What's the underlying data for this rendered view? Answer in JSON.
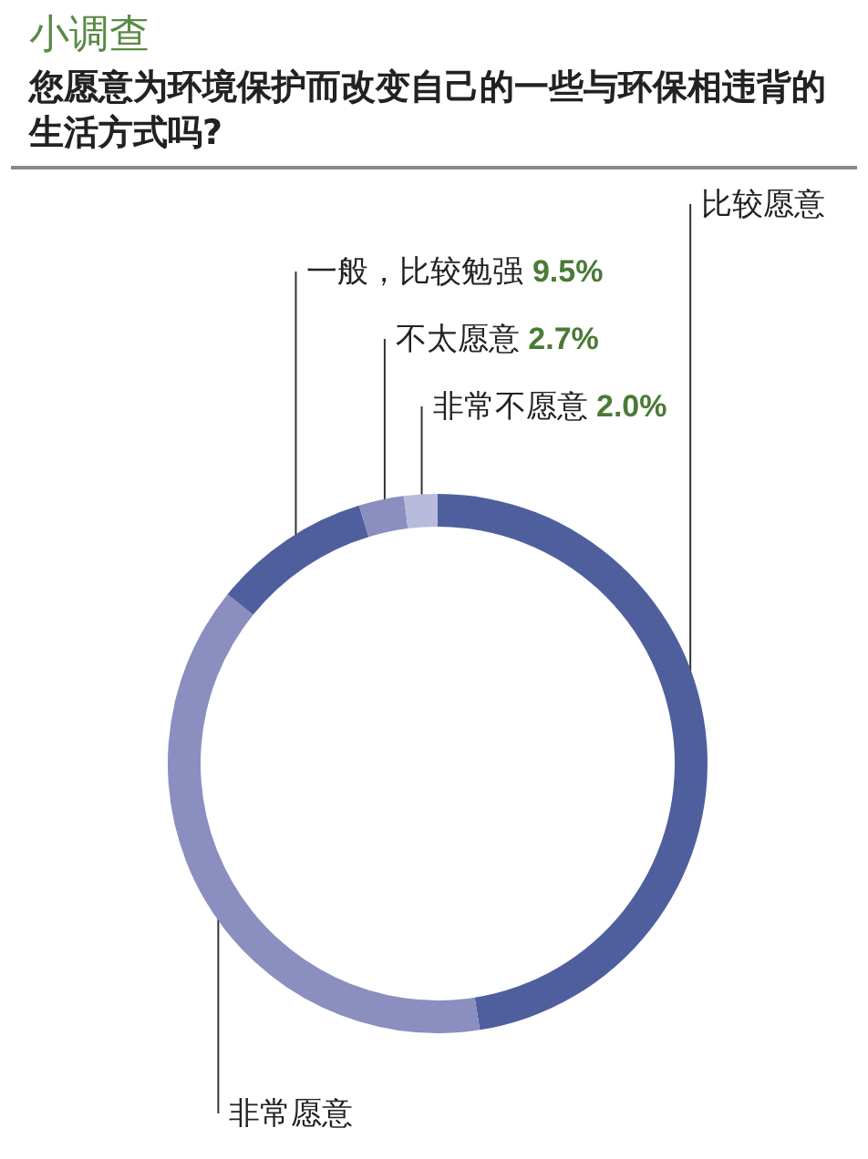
{
  "chart_data": {
    "type": "donut",
    "title": "小调查",
    "subtitle": "您愿意为环境保护而改变自己的一些与环保相违背的生活方式吗?",
    "categories": [
      "比较愿意",
      "非常愿意",
      "一般，比较勉强",
      "不太愿意",
      "非常不愿意"
    ],
    "values": [
      47.5,
      38.3,
      9.5,
      2.7,
      2.0
    ],
    "value_labels": [
      null,
      null,
      "9.5%",
      "2.7%",
      "2.0%"
    ],
    "colors": [
      "#4f5f9e",
      "#8a8fc0",
      "#4f5f9e",
      "#8a8fc0",
      "#b9bbdc"
    ]
  }
}
